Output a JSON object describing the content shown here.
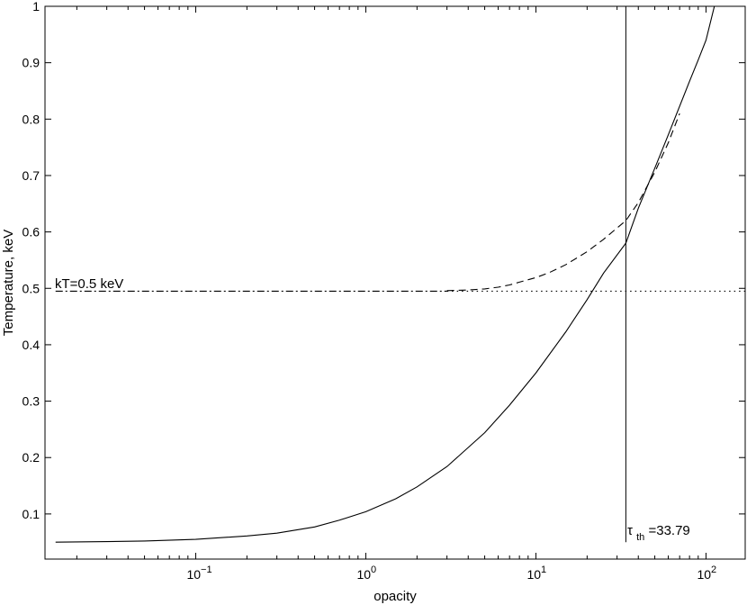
{
  "chart_data": {
    "type": "line",
    "xlabel": "opacity",
    "ylabel": "Temperature, keV",
    "x_scale": "log",
    "xlim": [
      0.013,
      170
    ],
    "ylim": [
      0.02,
      1.0
    ],
    "grid": false,
    "x_ticks": [
      {
        "value": 0.1,
        "base": "10",
        "exp": "−1"
      },
      {
        "value": 1,
        "base": "10",
        "exp": "0"
      },
      {
        "value": 10,
        "base": "10",
        "exp": "1"
      },
      {
        "value": 100,
        "base": "10",
        "exp": "2"
      }
    ],
    "y_ticks": [
      {
        "value": 0.1,
        "label": "0.1"
      },
      {
        "value": 0.2,
        "label": "0.2"
      },
      {
        "value": 0.3,
        "label": "0.3"
      },
      {
        "value": 0.4,
        "label": "0.4"
      },
      {
        "value": 0.5,
        "label": "0.5"
      },
      {
        "value": 0.6,
        "label": "0.6"
      },
      {
        "value": 0.7,
        "label": "0.7"
      },
      {
        "value": 0.8,
        "label": "0.8"
      },
      {
        "value": 0.9,
        "label": "0.9"
      },
      {
        "value": 1.0,
        "label": "1"
      }
    ],
    "series": [
      {
        "style": "solid",
        "x": [
          0.015,
          0.03,
          0.05,
          0.1,
          0.2,
          0.3,
          0.5,
          0.7,
          1,
          1.5,
          2,
          3,
          5,
          7,
          10,
          15,
          20,
          25,
          33.79,
          40,
          50,
          60,
          70,
          80,
          90,
          100,
          112
        ],
        "y": [
          0.05,
          0.051,
          0.052,
          0.055,
          0.061,
          0.066,
          0.077,
          0.089,
          0.104,
          0.127,
          0.148,
          0.184,
          0.244,
          0.293,
          0.35,
          0.423,
          0.48,
          0.527,
          0.58,
          0.642,
          0.713,
          0.772,
          0.823,
          0.867,
          0.905,
          0.94,
          1.0
        ]
      },
      {
        "style": "dash-dot",
        "x": [
          0.015,
          0.05,
          0.1,
          0.3,
          1,
          2,
          3
        ],
        "y": [
          0.495,
          0.495,
          0.495,
          0.495,
          0.495,
          0.495,
          0.495
        ]
      },
      {
        "style": "dashed",
        "x": [
          3,
          4,
          5,
          6,
          7,
          8,
          10,
          12,
          15,
          20,
          25,
          30,
          33.79,
          40,
          50,
          60,
          70
        ],
        "y": [
          0.496,
          0.497,
          0.499,
          0.502,
          0.506,
          0.511,
          0.519,
          0.528,
          0.542,
          0.565,
          0.587,
          0.607,
          0.62,
          0.652,
          0.706,
          0.758,
          0.81
        ]
      },
      {
        "style": "dotted",
        "x": [
          3,
          10,
          30,
          100,
          170
        ],
        "y": [
          0.495,
          0.495,
          0.495,
          0.495,
          0.495
        ]
      }
    ],
    "vline": {
      "x": 33.79,
      "ymin": 0.05,
      "ymax": 1.0
    },
    "annotations": {
      "kT": "kT=0.5 keV",
      "tau_symbol": "τ",
      "tau_sub": "th",
      "tau_value": "=33.79"
    }
  }
}
